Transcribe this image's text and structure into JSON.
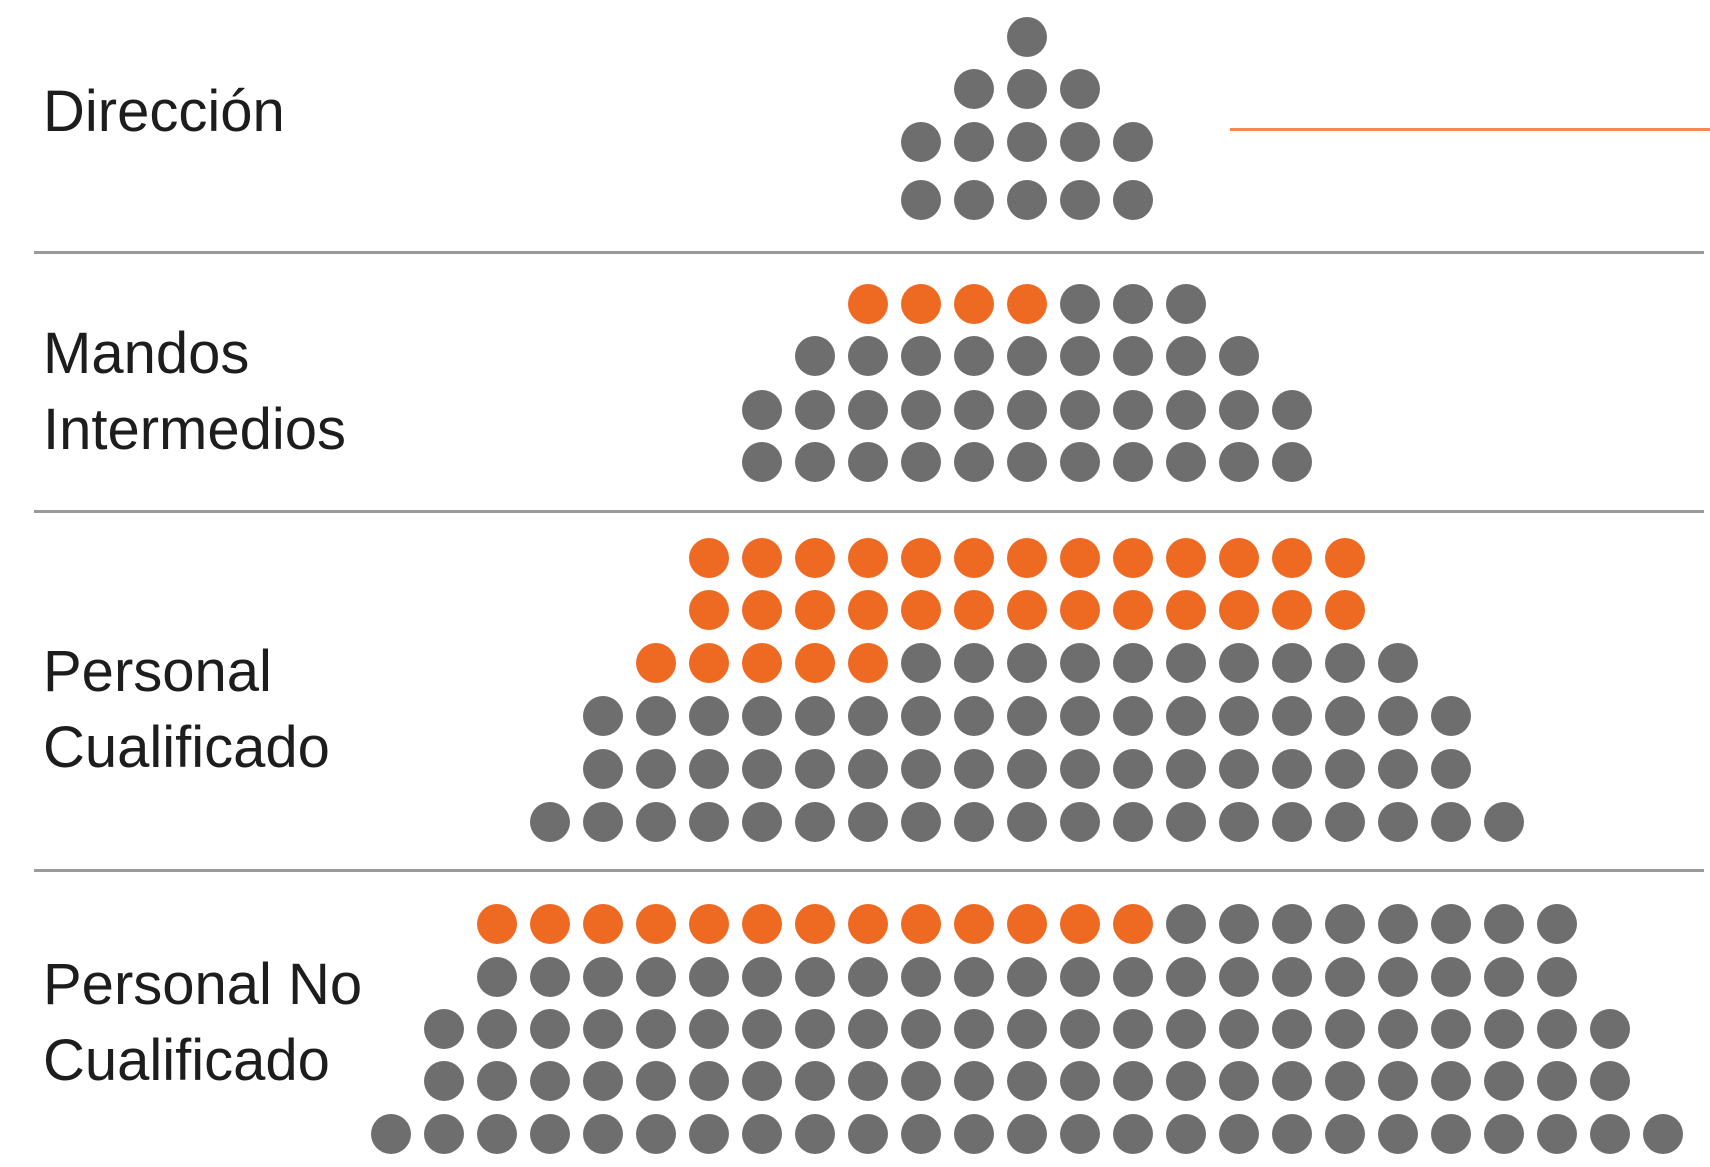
{
  "colors": {
    "highlight": "#ee6a22",
    "base": "#6e6e6e",
    "accent_line": "#ee8a55"
  },
  "bands": [
    {
      "lines": [
        "Dirección"
      ],
      "rows": [
        {
          "total": 1,
          "highlighted": 0
        },
        {
          "total": 3,
          "highlighted": 0
        },
        {
          "total": 5,
          "highlighted": 0
        },
        {
          "total": 5,
          "highlighted": 0
        }
      ]
    },
    {
      "lines": [
        "Mandos",
        "Intermedios"
      ],
      "rows": [
        {
          "total": 7,
          "highlighted": 4
        },
        {
          "total": 9,
          "highlighted": 0
        },
        {
          "total": 11,
          "highlighted": 0
        },
        {
          "total": 11,
          "highlighted": 0
        }
      ]
    },
    {
      "lines": [
        "Personal",
        "Cualificado"
      ],
      "rows": [
        {
          "total": 13,
          "highlighted": 13
        },
        {
          "total": 13,
          "highlighted": 13
        },
        {
          "total": 15,
          "highlighted": 5
        },
        {
          "total": 17,
          "highlighted": 0
        },
        {
          "total": 17,
          "highlighted": 0
        },
        {
          "total": 19,
          "highlighted": 0
        }
      ]
    },
    {
      "lines": [
        "Personal No",
        "Cualificado"
      ],
      "rows": [
        {
          "total": 21,
          "highlighted": 13
        },
        {
          "total": 21,
          "highlighted": 0
        },
        {
          "total": 23,
          "highlighted": 0
        },
        {
          "total": 23,
          "highlighted": 0
        },
        {
          "total": 25,
          "highlighted": 0
        }
      ]
    }
  ]
}
